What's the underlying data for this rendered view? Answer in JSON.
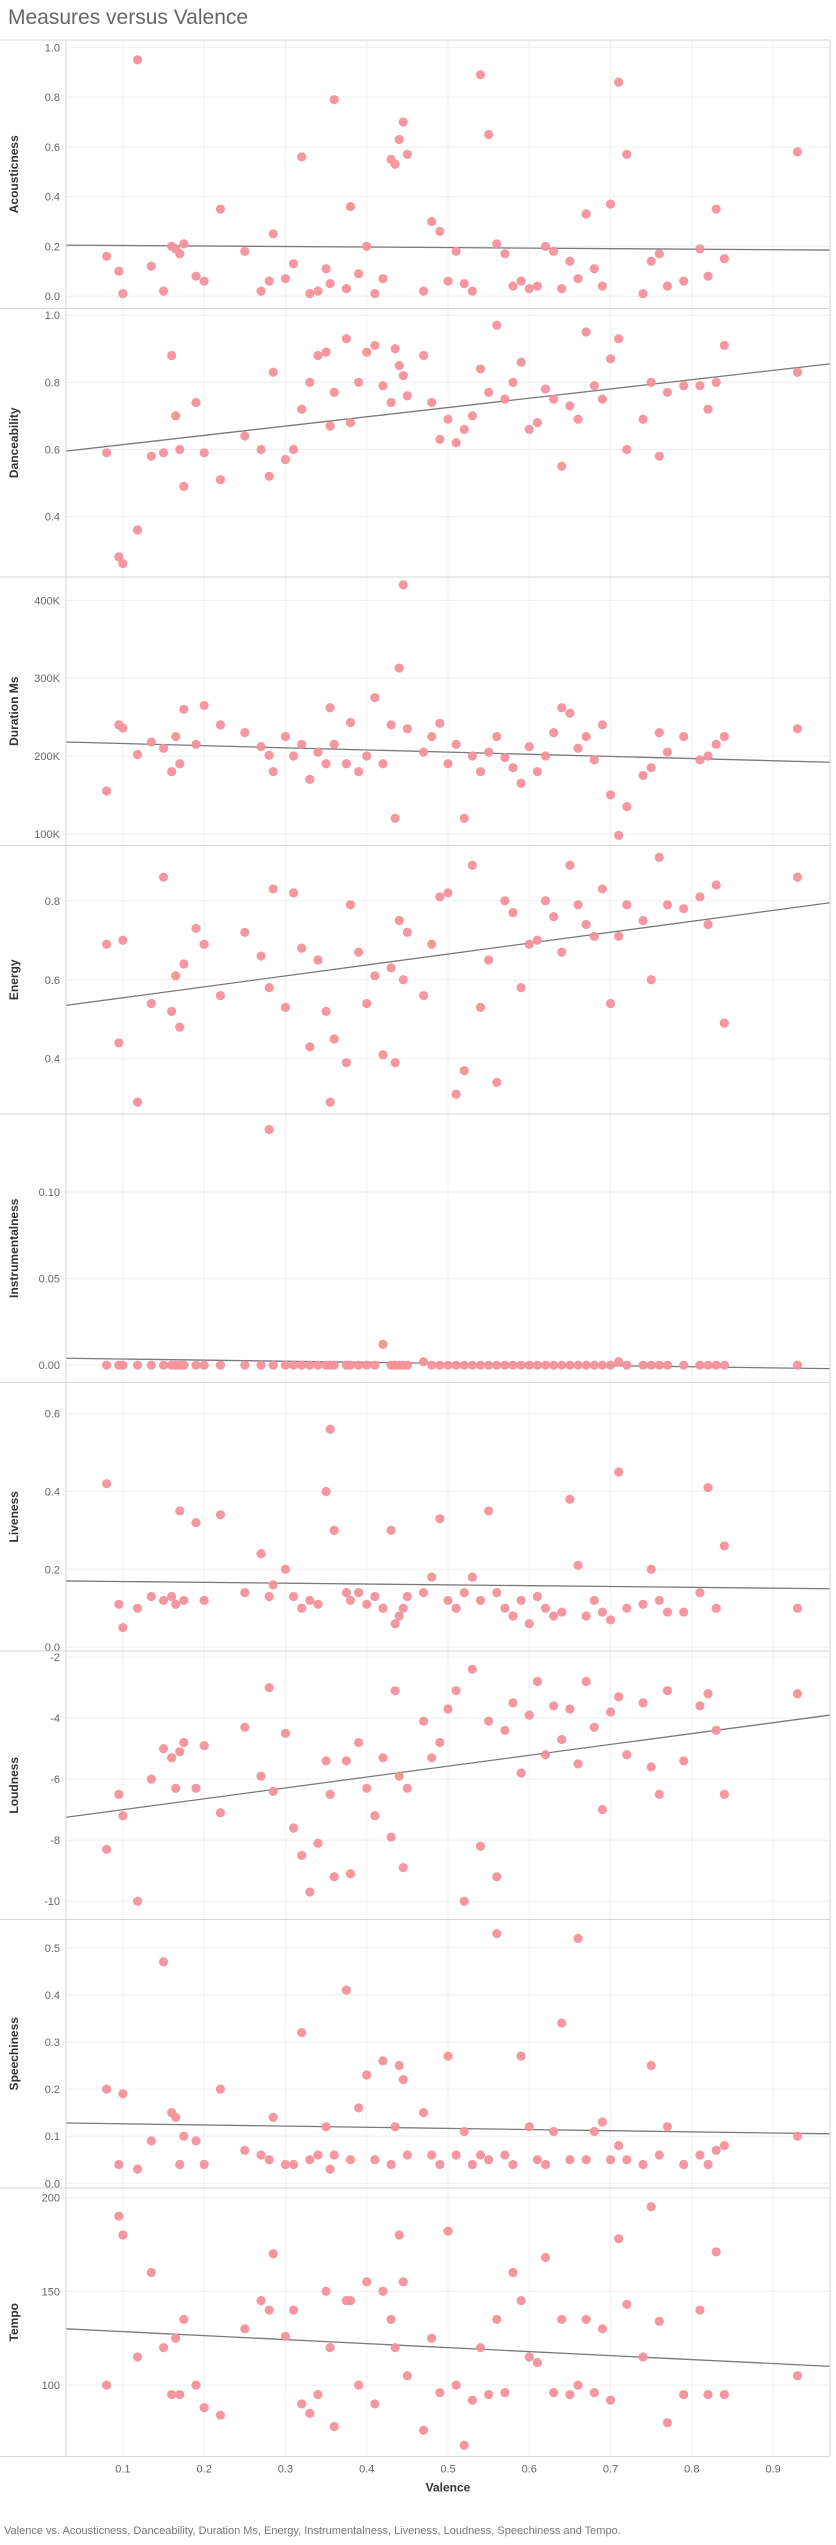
{
  "title": "Measures versus Valence",
  "caption": "Valence vs. Acousticness, Danceability, Duration Ms, Energy, Instrumentalness, Liveness, Loudness, Speechiness and Tempo.",
  "colors": {
    "point": "#f4919b",
    "trend": "#7a7a7a",
    "grid": "#efefef",
    "border": "#d6d6d6"
  },
  "chart_data": {
    "type": "scatter",
    "xlabel": "Valence",
    "x_ticks": [
      "0.1",
      "0.2",
      "0.3",
      "0.4",
      "0.5",
      "0.6",
      "0.7",
      "0.8",
      "0.9"
    ],
    "xlim": [
      0.03,
      0.97
    ],
    "x": [
      0.08,
      0.095,
      0.1,
      0.118,
      0.135,
      0.15,
      0.16,
      0.165,
      0.17,
      0.175,
      0.19,
      0.2,
      0.22,
      0.25,
      0.27,
      0.28,
      0.285,
      0.3,
      0.31,
      0.32,
      0.33,
      0.34,
      0.35,
      0.355,
      0.36,
      0.375,
      0.38,
      0.39,
      0.4,
      0.41,
      0.42,
      0.43,
      0.435,
      0.44,
      0.445,
      0.45,
      0.47,
      0.48,
      0.49,
      0.5,
      0.51,
      0.52,
      0.53,
      0.54,
      0.55,
      0.56,
      0.57,
      0.58,
      0.59,
      0.6,
      0.61,
      0.62,
      0.63,
      0.64,
      0.65,
      0.66,
      0.67,
      0.68,
      0.69,
      0.7,
      0.71,
      0.72,
      0.74,
      0.75,
      0.76,
      0.77,
      0.79,
      0.81,
      0.82,
      0.83,
      0.84,
      0.93
    ],
    "series": [
      {
        "name": "Acousticness",
        "ylim": [
          -0.05,
          1.03
        ],
        "y_ticks": [
          "0.0",
          "0.2",
          "0.4",
          "0.6",
          "0.8",
          "1.0"
        ],
        "tick_values": [
          0,
          0.2,
          0.4,
          0.6,
          0.8,
          1.0
        ],
        "trend": [
          0.205,
          0.185
        ],
        "values": [
          0.16,
          0.1,
          0.01,
          0.95,
          0.12,
          0.02,
          0.2,
          0.19,
          0.17,
          0.21,
          0.08,
          0.06,
          0.35,
          0.18,
          0.02,
          0.06,
          0.25,
          0.07,
          0.13,
          0.56,
          0.01,
          0.02,
          0.11,
          0.05,
          0.79,
          0.03,
          0.36,
          0.09,
          0.2,
          0.01,
          0.07,
          0.55,
          0.53,
          0.63,
          0.7,
          0.57,
          0.02,
          0.3,
          0.26,
          0.06,
          0.18,
          0.05,
          0.02,
          0.89,
          0.65,
          0.21,
          0.17,
          0.04,
          0.06,
          0.03,
          0.04,
          0.2,
          0.18,
          0.03,
          0.14,
          0.07,
          0.33,
          0.11,
          0.04,
          0.37,
          0.86,
          0.57,
          0.01,
          0.14,
          0.17,
          0.04,
          0.06,
          0.19,
          0.08,
          0.35,
          0.15,
          0.58
        ]
      },
      {
        "name": "Danceability",
        "ylim": [
          0.22,
          1.02
        ],
        "y_ticks": [
          "0.4",
          "0.6",
          "0.8",
          "1.0"
        ],
        "tick_values": [
          0.4,
          0.6,
          0.8,
          1.0
        ],
        "trend": [
          0.595,
          0.855
        ],
        "values": [
          0.59,
          0.28,
          0.26,
          0.36,
          0.58,
          0.59,
          0.88,
          0.7,
          0.6,
          0.49,
          0.74,
          0.59,
          0.51,
          0.64,
          0.6,
          0.52,
          0.83,
          0.57,
          0.6,
          0.72,
          0.8,
          0.88,
          0.89,
          0.67,
          0.77,
          0.93,
          0.68,
          0.8,
          0.89,
          0.91,
          0.79,
          0.74,
          0.9,
          0.85,
          0.82,
          0.76,
          0.88,
          0.74,
          0.63,
          0.69,
          0.62,
          0.66,
          0.7,
          0.84,
          0.77,
          0.97,
          0.75,
          0.8,
          0.86,
          0.66,
          0.68,
          0.78,
          0.75,
          0.55,
          0.73,
          0.69,
          0.95,
          0.79,
          0.75,
          0.87,
          0.93,
          0.6,
          0.69,
          0.8,
          0.58,
          0.77,
          0.79,
          0.79,
          0.72,
          0.8,
          0.91,
          0.83
        ]
      },
      {
        "name": "Duration Ms",
        "ylim": [
          85000,
          430000
        ],
        "y_ticks": [
          "100K",
          "200K",
          "300K",
          "400K"
        ],
        "tick_values": [
          100000,
          200000,
          300000,
          400000
        ],
        "trend": [
          218000,
          192000
        ],
        "values": [
          155000,
          240000,
          236000,
          202000,
          218000,
          210000,
          180000,
          225000,
          190000,
          260000,
          215000,
          265000,
          240000,
          230000,
          212000,
          201000,
          180000,
          225000,
          200000,
          215000,
          170000,
          205000,
          190000,
          262000,
          215000,
          190000,
          243000,
          180000,
          200000,
          275000,
          190000,
          240000,
          120000,
          313000,
          420000,
          235000,
          205000,
          225000,
          242000,
          190000,
          215000,
          120000,
          200000,
          180000,
          205000,
          225000,
          198000,
          185000,
          165000,
          212000,
          180000,
          200000,
          230000,
          262000,
          255000,
          210000,
          225000,
          195000,
          240000,
          150000,
          98000,
          135000,
          175000,
          185000,
          230000,
          205000,
          225000,
          195000,
          200000,
          215000,
          225000,
          235000
        ]
      },
      {
        "name": "Energy",
        "ylim": [
          0.26,
          0.94
        ],
        "y_ticks": [
          "0.4",
          "0.6",
          "0.8"
        ],
        "tick_values": [
          0.4,
          0.6,
          0.8
        ],
        "trend": [
          0.535,
          0.795
        ],
        "values": [
          0.69,
          0.44,
          0.7,
          0.29,
          0.54,
          0.86,
          0.52,
          0.61,
          0.48,
          0.64,
          0.73,
          0.69,
          0.56,
          0.72,
          0.66,
          0.58,
          0.83,
          0.53,
          0.82,
          0.68,
          0.43,
          0.65,
          0.52,
          0.29,
          0.45,
          0.39,
          0.79,
          0.67,
          0.54,
          0.61,
          0.41,
          0.63,
          0.39,
          0.75,
          0.6,
          0.72,
          0.56,
          0.69,
          0.81,
          0.82,
          0.31,
          0.37,
          0.89,
          0.53,
          0.65,
          0.34,
          0.8,
          0.77,
          0.58,
          0.69,
          0.7,
          0.8,
          0.76,
          0.67,
          0.89,
          0.79,
          0.74,
          0.71,
          0.83,
          0.54,
          0.71,
          0.79,
          0.75,
          0.6,
          0.91,
          0.79,
          0.78,
          0.81,
          0.74,
          0.84,
          0.49,
          0.86
        ]
      },
      {
        "name": "Instrumentalness",
        "ylim": [
          -0.01,
          0.145
        ],
        "y_ticks": [
          "0.00",
          "0.05",
          "0.10"
        ],
        "tick_values": [
          0,
          0.05,
          0.1
        ],
        "trend": [
          0.004,
          -0.002
        ],
        "values": [
          0,
          0,
          0,
          0,
          0,
          0,
          0,
          0,
          0,
          0,
          0,
          0,
          0,
          0,
          0,
          0.136,
          0,
          0,
          0,
          0,
          0,
          0,
          0,
          0,
          0,
          0,
          0,
          0,
          0,
          0,
          0.012,
          0,
          0,
          0,
          0,
          0,
          0.002,
          0,
          0,
          0,
          0,
          0,
          0,
          0,
          0,
          0,
          0,
          0,
          0,
          0,
          0,
          0,
          0,
          0,
          0,
          0,
          0,
          0,
          0,
          0,
          0.002,
          0,
          0,
          0,
          0,
          0,
          0,
          0,
          0,
          0,
          0,
          0
        ]
      },
      {
        "name": "Liveness",
        "ylim": [
          -0.01,
          0.68
        ],
        "y_ticks": [
          "0.0",
          "0.2",
          "0.4",
          "0.6"
        ],
        "tick_values": [
          0,
          0.2,
          0.4,
          0.6
        ],
        "trend": [
          0.17,
          0.15
        ],
        "values": [
          0.42,
          0.11,
          0.05,
          0.1,
          0.13,
          0.12,
          0.13,
          0.11,
          0.35,
          0.12,
          0.32,
          0.12,
          0.34,
          0.14,
          0.24,
          0.13,
          0.16,
          0.2,
          0.13,
          0.1,
          0.12,
          0.11,
          0.4,
          0.56,
          0.3,
          0.14,
          0.12,
          0.14,
          0.11,
          0.13,
          0.1,
          0.3,
          0.06,
          0.08,
          0.1,
          0.13,
          0.14,
          0.18,
          0.33,
          0.12,
          0.1,
          0.14,
          0.18,
          0.12,
          0.35,
          0.14,
          0.1,
          0.08,
          0.12,
          0.06,
          0.13,
          0.1,
          0.08,
          0.09,
          0.38,
          0.21,
          0.08,
          0.12,
          0.09,
          0.07,
          0.45,
          0.1,
          0.11,
          0.2,
          0.12,
          0.09,
          0.09,
          0.14,
          0.41,
          0.1,
          0.26,
          0.1
        ]
      },
      {
        "name": "Loudness",
        "ylim": [
          -10.6,
          -1.8
        ],
        "y_ticks": [
          "-10",
          "-8",
          "-6",
          "-4",
          "-2"
        ],
        "tick_values": [
          -10,
          -8,
          -6,
          -4,
          -2
        ],
        "trend": [
          -7.25,
          -3.9
        ],
        "values": [
          -8.3,
          -6.5,
          -7.2,
          -10,
          -6,
          -5,
          -5.3,
          -6.3,
          -5.1,
          -4.8,
          -6.3,
          -4.9,
          -7.1,
          -4.3,
          -5.9,
          -3,
          -6.4,
          -4.5,
          -7.6,
          -8.5,
          -9.7,
          -8.1,
          -5.4,
          -6.5,
          -9.2,
          -5.4,
          -9.1,
          -4.8,
          -6.3,
          -7.2,
          -5.3,
          -7.9,
          -3.1,
          -5.9,
          -8.9,
          -6.3,
          -4.1,
          -5.3,
          -4.8,
          -3.7,
          -3.1,
          -10,
          -2.4,
          -8.2,
          -4.1,
          -9.2,
          -4.4,
          -3.5,
          -5.8,
          -3.9,
          -2.8,
          -5.2,
          -3.6,
          -4.7,
          -3.7,
          -5.5,
          -2.8,
          -4.3,
          -7,
          -3.8,
          -3.3,
          -5.2,
          -3.5,
          -5.6,
          -6.5,
          -3.1,
          -5.4,
          -3.6,
          -3.2,
          -4.4,
          -6.5,
          -3.2
        ]
      },
      {
        "name": "Speechiness",
        "ylim": [
          -0.01,
          0.56
        ],
        "y_ticks": [
          "0.0",
          "0.1",
          "0.2",
          "0.3",
          "0.4",
          "0.5"
        ],
        "tick_values": [
          0,
          0.1,
          0.2,
          0.3,
          0.4,
          0.5
        ],
        "trend": [
          0.128,
          0.105
        ],
        "values": [
          0.2,
          0.04,
          0.19,
          0.03,
          0.09,
          0.47,
          0.15,
          0.14,
          0.04,
          0.1,
          0.09,
          0.04,
          0.2,
          0.07,
          0.06,
          0.05,
          0.14,
          0.04,
          0.04,
          0.32,
          0.05,
          0.06,
          0.12,
          0.03,
          0.06,
          0.41,
          0.05,
          0.16,
          0.23,
          0.05,
          0.26,
          0.04,
          0.12,
          0.25,
          0.22,
          0.06,
          0.15,
          0.06,
          0.04,
          0.27,
          0.06,
          0.11,
          0.04,
          0.06,
          0.05,
          0.53,
          0.06,
          0.04,
          0.27,
          0.12,
          0.05,
          0.04,
          0.11,
          0.34,
          0.05,
          0.52,
          0.05,
          0.11,
          0.13,
          0.05,
          0.08,
          0.05,
          0.04,
          0.25,
          0.06,
          0.12,
          0.04,
          0.06,
          0.04,
          0.07,
          0.08,
          0.1
        ]
      },
      {
        "name": "Tempo",
        "ylim": [
          62,
          205
        ],
        "y_ticks": [
          "100",
          "150",
          "200"
        ],
        "tick_values": [
          100,
          150,
          200
        ],
        "trend": [
          130,
          110
        ],
        "values": [
          100,
          190,
          180,
          115,
          160,
          120,
          95,
          125,
          95,
          135,
          100,
          88,
          84,
          130,
          145,
          140,
          170,
          126,
          140,
          90,
          85,
          95,
          150,
          120,
          78,
          145,
          145,
          100,
          155,
          90,
          150,
          135,
          120,
          180,
          155,
          105,
          76,
          125,
          96,
          182,
          100,
          68,
          92,
          120,
          95,
          135,
          96,
          160,
          145,
          115,
          112,
          168,
          96,
          135,
          95,
          100,
          135,
          96,
          130,
          92,
          178,
          143,
          115,
          195,
          134,
          80,
          95,
          140,
          95,
          171,
          95,
          105
        ]
      }
    ]
  }
}
